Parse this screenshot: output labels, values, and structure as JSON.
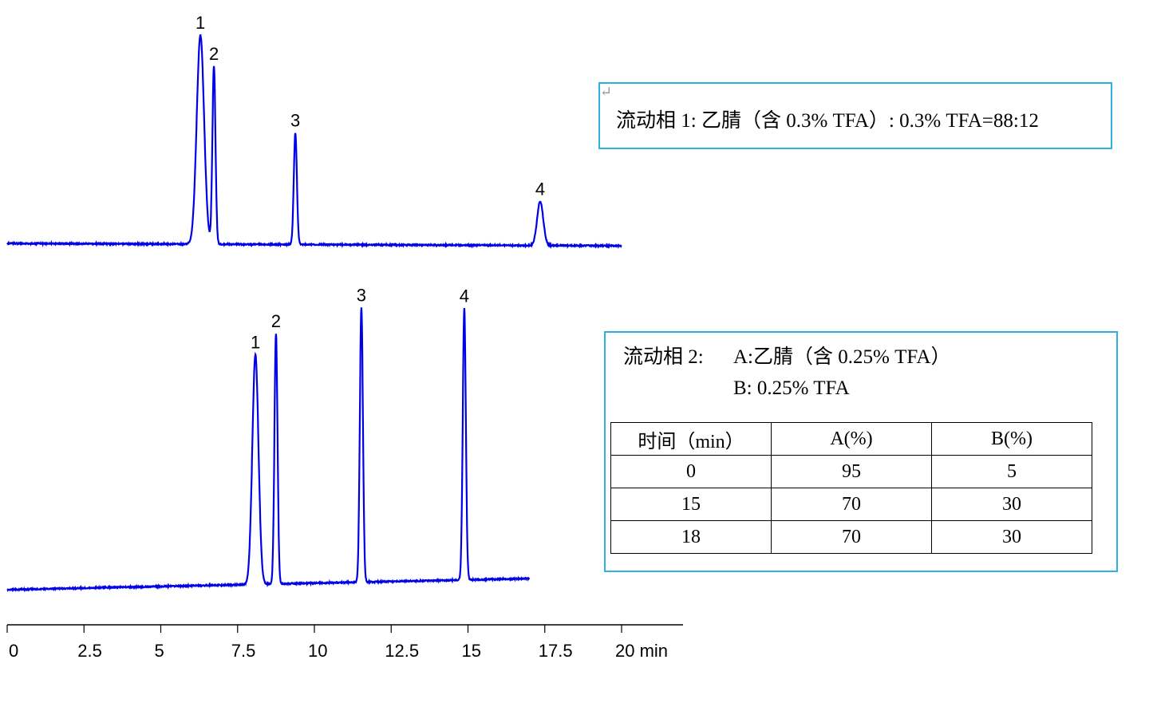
{
  "chart_data": [
    {
      "type": "line",
      "title": "",
      "xlabel": "min",
      "ylabel": "",
      "xlim": [
        0,
        20
      ],
      "x_ticks": [
        "0",
        "2.5",
        "5",
        "7.5",
        "10",
        "12.5",
        "15",
        "17.5",
        "20 min"
      ],
      "grid": false,
      "color": "#0000e6",
      "x_range": [
        0,
        20
      ],
      "peaks": [
        {
          "label": "1",
          "rt": 6.29,
          "height": 262,
          "width": 0.12
        },
        {
          "label": "2",
          "rt": 6.73,
          "height": 223,
          "width": 0.05
        },
        {
          "label": "3",
          "rt": 9.38,
          "height": 140,
          "width": 0.05
        },
        {
          "label": "4",
          "rt": 17.35,
          "height": 55,
          "width": 0.1
        }
      ]
    },
    {
      "type": "line",
      "title": "",
      "xlabel": "min",
      "ylabel": "",
      "xlim": [
        0,
        20
      ],
      "grid": false,
      "color": "#0000e6",
      "x_range": [
        0,
        17
      ],
      "peaks": [
        {
          "label": "1",
          "rt": 8.08,
          "height": 288,
          "width": 0.1
        },
        {
          "label": "2",
          "rt": 8.75,
          "height": 314,
          "width": 0.05
        },
        {
          "label": "3",
          "rt": 11.53,
          "height": 344,
          "width": 0.05
        },
        {
          "label": "4",
          "rt": 14.88,
          "height": 340,
          "width": 0.05
        }
      ]
    }
  ],
  "mobile_phase_1": {
    "text": "流动相 1:  乙腈（含 0.3% TFA）: 0.3% TFA=88:12"
  },
  "mobile_phase_2": {
    "label": "流动相 2:",
    "a": "A:乙腈（含 0.25% TFA）",
    "b": "B: 0.25% TFA",
    "table": {
      "headers": [
        "时间（min）",
        "A(%)",
        "B(%)"
      ],
      "rows": [
        [
          "0",
          "95",
          "5"
        ],
        [
          "15",
          "70",
          "30"
        ],
        [
          "18",
          "70",
          "30"
        ]
      ]
    }
  }
}
